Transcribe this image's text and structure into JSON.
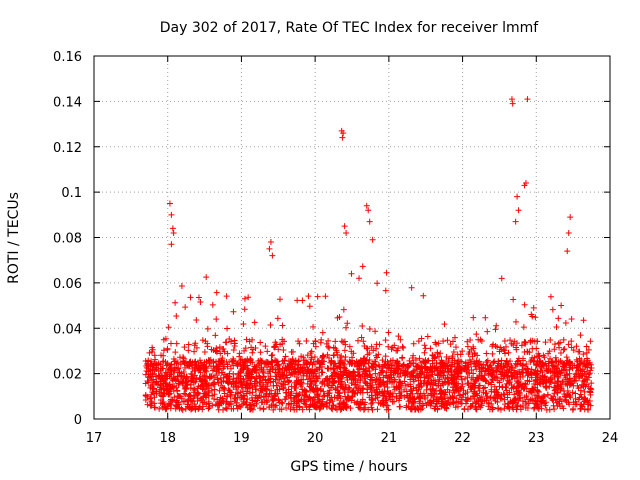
{
  "chart_data": {
    "type": "scatter",
    "title": "Day 302 of 2017, Rate Of TEC Index for receiver lmmf",
    "xlabel": "GPS time / hours",
    "ylabel": "ROTI / TECUs",
    "xlim": [
      17,
      24
    ],
    "ylim": [
      0,
      0.16
    ],
    "xticks": [
      "17",
      "18",
      "19",
      "20",
      "21",
      "22",
      "23",
      "24"
    ],
    "yticks": [
      "0",
      "0.02",
      "0.04",
      "0.06",
      "0.08",
      "0.1",
      "0.12",
      "0.14",
      "0.16"
    ],
    "grid": true,
    "marker": "+",
    "color": "#ff0000",
    "series": [
      {
        "name": "ROTI",
        "x_range": [
          17.7,
          23.75
        ],
        "notable_points": [
          {
            "x": 18.03,
            "y": 0.095
          },
          {
            "x": 18.05,
            "y": 0.09
          },
          {
            "x": 18.07,
            "y": 0.084
          },
          {
            "x": 18.08,
            "y": 0.082
          },
          {
            "x": 18.05,
            "y": 0.077
          },
          {
            "x": 19.38,
            "y": 0.075
          },
          {
            "x": 19.4,
            "y": 0.078
          },
          {
            "x": 19.42,
            "y": 0.072
          },
          {
            "x": 20.36,
            "y": 0.127
          },
          {
            "x": 20.38,
            "y": 0.126
          },
          {
            "x": 20.37,
            "y": 0.124
          },
          {
            "x": 20.4,
            "y": 0.085
          },
          {
            "x": 20.42,
            "y": 0.082
          },
          {
            "x": 20.7,
            "y": 0.094
          },
          {
            "x": 20.72,
            "y": 0.092
          },
          {
            "x": 20.74,
            "y": 0.087
          },
          {
            "x": 20.78,
            "y": 0.079
          },
          {
            "x": 22.67,
            "y": 0.141
          },
          {
            "x": 22.68,
            "y": 0.139
          },
          {
            "x": 22.88,
            "y": 0.141
          },
          {
            "x": 22.86,
            "y": 0.104
          },
          {
            "x": 22.84,
            "y": 0.103
          },
          {
            "x": 22.74,
            "y": 0.098
          },
          {
            "x": 22.76,
            "y": 0.092
          },
          {
            "x": 22.72,
            "y": 0.087
          },
          {
            "x": 23.46,
            "y": 0.089
          },
          {
            "x": 23.44,
            "y": 0.082
          },
          {
            "x": 23.42,
            "y": 0.074
          }
        ],
        "clusters": [
          {
            "x_from": 17.7,
            "x_to": 18.0,
            "typical_max": 0.036
          },
          {
            "x_from": 18.0,
            "x_to": 18.4,
            "typical_max": 0.06
          },
          {
            "x_from": 18.4,
            "x_to": 19.3,
            "typical_max": 0.063
          },
          {
            "x_from": 19.3,
            "x_to": 20.3,
            "typical_max": 0.057
          },
          {
            "x_from": 20.3,
            "x_to": 21.5,
            "typical_max": 0.068
          },
          {
            "x_from": 21.5,
            "x_to": 22.5,
            "typical_max": 0.045
          },
          {
            "x_from": 22.5,
            "x_to": 23.0,
            "typical_max": 0.062
          },
          {
            "x_from": 23.0,
            "x_to": 23.75,
            "typical_max": 0.055
          }
        ]
      }
    ]
  }
}
